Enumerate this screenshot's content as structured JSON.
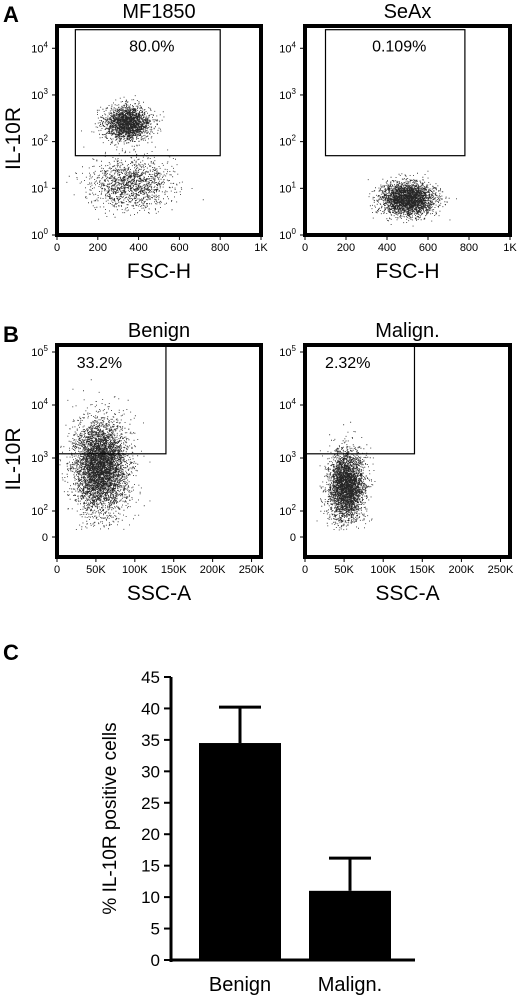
{
  "panel_letters": {
    "a": "A",
    "b": "B",
    "c": "C"
  },
  "chart_data": [
    {
      "type": "scatter",
      "panel": "A",
      "title": "MF1850",
      "xlabel": "FSC-H",
      "ylabel": "IL-10R",
      "xlim": [
        0,
        1000
      ],
      "y_scale": "log",
      "ylim": [
        1,
        30000
      ],
      "x_tick_labels": [
        "0",
        "200",
        "400",
        "600",
        "800",
        "1K"
      ],
      "x_tick_values": [
        0,
        200,
        400,
        600,
        800,
        1000
      ],
      "y_ticks": [
        {
          "base": "10",
          "exp": "0",
          "value": 1
        },
        {
          "base": "10",
          "exp": "1",
          "value": 10
        },
        {
          "base": "10",
          "exp": "2",
          "value": 100
        },
        {
          "base": "10",
          "exp": "3",
          "value": 1000
        },
        {
          "base": "10",
          "exp": "4",
          "value": 10000
        }
      ],
      "gate": {
        "x": [
          90,
          800
        ],
        "y": [
          50,
          25000
        ],
        "percent": "80.0%"
      },
      "populations": [
        {
          "x": 345,
          "y": 250,
          "sx": 55,
          "sy_log": 0.18,
          "n": 2300
        },
        {
          "x": 360,
          "y": 13,
          "sx": 95,
          "sy_log": 0.26,
          "n": 1400
        }
      ]
    },
    {
      "type": "scatter",
      "panel": "A",
      "title": "SeAx",
      "xlabel": "FSC-H",
      "ylabel": "",
      "xlim": [
        0,
        1000
      ],
      "y_scale": "log",
      "ylim": [
        1,
        30000
      ],
      "x_tick_labels": [
        "0",
        "200",
        "400",
        "600",
        "800",
        "1K"
      ],
      "x_tick_values": [
        0,
        200,
        400,
        600,
        800,
        1000
      ],
      "y_ticks": [
        {
          "base": "10",
          "exp": "0",
          "value": 1
        },
        {
          "base": "10",
          "exp": "1",
          "value": 10
        },
        {
          "base": "10",
          "exp": "2",
          "value": 100
        },
        {
          "base": "10",
          "exp": "3",
          "value": 1000
        },
        {
          "base": "10",
          "exp": "4",
          "value": 10000
        }
      ],
      "gate": {
        "x": [
          100,
          780
        ],
        "y": [
          50,
          25000
        ],
        "percent": "0.109%"
      },
      "populations": [
        {
          "x": 500,
          "y": 6,
          "sx": 65,
          "sy_log": 0.17,
          "n": 3000
        }
      ]
    },
    {
      "type": "scatter",
      "panel": "B",
      "title": "Benign",
      "xlabel": "SSC-A",
      "ylabel": "IL-10R",
      "xlim": [
        0,
        262144
      ],
      "y_scale": "biexponential",
      "ylim": [
        -100,
        260000
      ],
      "x_tick_labels": [
        "0",
        "50K",
        "100K",
        "150K",
        "200K",
        "250K"
      ],
      "x_tick_values": [
        0,
        50000,
        100000,
        150000,
        200000,
        250000
      ],
      "y_ticks": [
        {
          "base": "0",
          "exp": "",
          "value": 0
        },
        {
          "base": "10",
          "exp": "2",
          "value": 100
        },
        {
          "base": "10",
          "exp": "3",
          "value": 1000
        },
        {
          "base": "10",
          "exp": "4",
          "value": 10000
        },
        {
          "base": "10",
          "exp": "5",
          "value": 100000
        }
      ],
      "gate": {
        "x": [
          0,
          140000
        ],
        "y": [
          1200,
          260000
        ],
        "percent": "33.2%"
      },
      "populations": [
        {
          "x": 55000,
          "y": 700,
          "sx": 17000,
          "sy_log": 0.42,
          "n": 5200
        }
      ]
    },
    {
      "type": "scatter",
      "panel": "B",
      "title": "Malign.",
      "xlabel": "SSC-A",
      "ylabel": "",
      "xlim": [
        0,
        262144
      ],
      "y_scale": "biexponential",
      "ylim": [
        -100,
        260000
      ],
      "x_tick_labels": [
        "0",
        "50K",
        "100K",
        "150K",
        "200K",
        "250K"
      ],
      "x_tick_values": [
        0,
        50000,
        100000,
        150000,
        200000,
        250000
      ],
      "y_ticks": [
        {
          "base": "0",
          "exp": "",
          "value": 0
        },
        {
          "base": "10",
          "exp": "2",
          "value": 100
        },
        {
          "base": "10",
          "exp": "3",
          "value": 1000
        },
        {
          "base": "10",
          "exp": "4",
          "value": 10000
        },
        {
          "base": "10",
          "exp": "5",
          "value": 100000
        }
      ],
      "gate": {
        "x": [
          0,
          140000
        ],
        "y": [
          1200,
          260000
        ],
        "percent": "2.32%"
      },
      "populations": [
        {
          "x": 52000,
          "y": 300,
          "sx": 11000,
          "sy_log": 0.32,
          "n": 3600
        }
      ]
    },
    {
      "type": "bar",
      "panel": "C",
      "categories": [
        "Benign",
        "Malign."
      ],
      "values": [
        34.5,
        11
      ],
      "errors": [
        5.7,
        5.2
      ],
      "ylabel": "% IL-10R positive cells",
      "ylim": [
        0,
        45
      ],
      "y_ticks": [
        "0",
        "5",
        "10",
        "15",
        "20",
        "25",
        "30",
        "35",
        "40",
        "45"
      ]
    }
  ]
}
